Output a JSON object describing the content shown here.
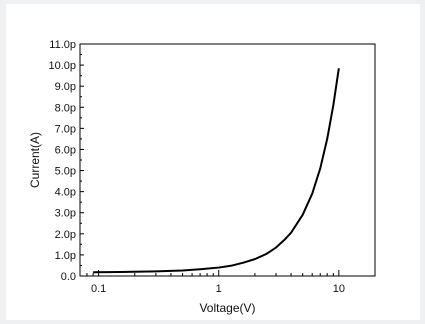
{
  "chart_data": {
    "type": "line",
    "title": "",
    "xlabel": "Voltage(V)",
    "ylabel": "Current(A)",
    "x_scale": "log",
    "xlim": [
      0.07,
      20
    ],
    "ylim": [
      0,
      11
    ],
    "x_ticks": [
      {
        "value": 0.1,
        "label": "0.1"
      },
      {
        "value": 1,
        "label": "1"
      },
      {
        "value": 10,
        "label": "10"
      }
    ],
    "y_ticks": [
      {
        "value": 0,
        "label": "0.0"
      },
      {
        "value": 1,
        "label": "1.0p"
      },
      {
        "value": 2,
        "label": "2.0p"
      },
      {
        "value": 3,
        "label": "3.0p"
      },
      {
        "value": 4,
        "label": "4.0p"
      },
      {
        "value": 5,
        "label": "5.0p"
      },
      {
        "value": 6,
        "label": "6.0p"
      },
      {
        "value": 7,
        "label": "7.0p"
      },
      {
        "value": 8,
        "label": "8.0p"
      },
      {
        "value": 9,
        "label": "9.0p"
      },
      {
        "value": 10,
        "label": "10.0p"
      },
      {
        "value": 11,
        "label": "11.0p"
      }
    ],
    "grid": false,
    "legend": "none",
    "series": [
      {
        "color": "#000000",
        "x": [
          0.09,
          0.15,
          0.3,
          0.5,
          0.7,
          1.0,
          1.3,
          1.6,
          2.0,
          2.5,
          3.0,
          3.5,
          4.0,
          5.0,
          6.0,
          7.0,
          8.0,
          9.0,
          10.0
        ],
        "y": [
          0.18,
          0.19,
          0.22,
          0.26,
          0.32,
          0.4,
          0.5,
          0.63,
          0.8,
          1.05,
          1.35,
          1.7,
          2.05,
          2.9,
          3.9,
          5.1,
          6.5,
          8.1,
          9.85
        ]
      }
    ]
  }
}
